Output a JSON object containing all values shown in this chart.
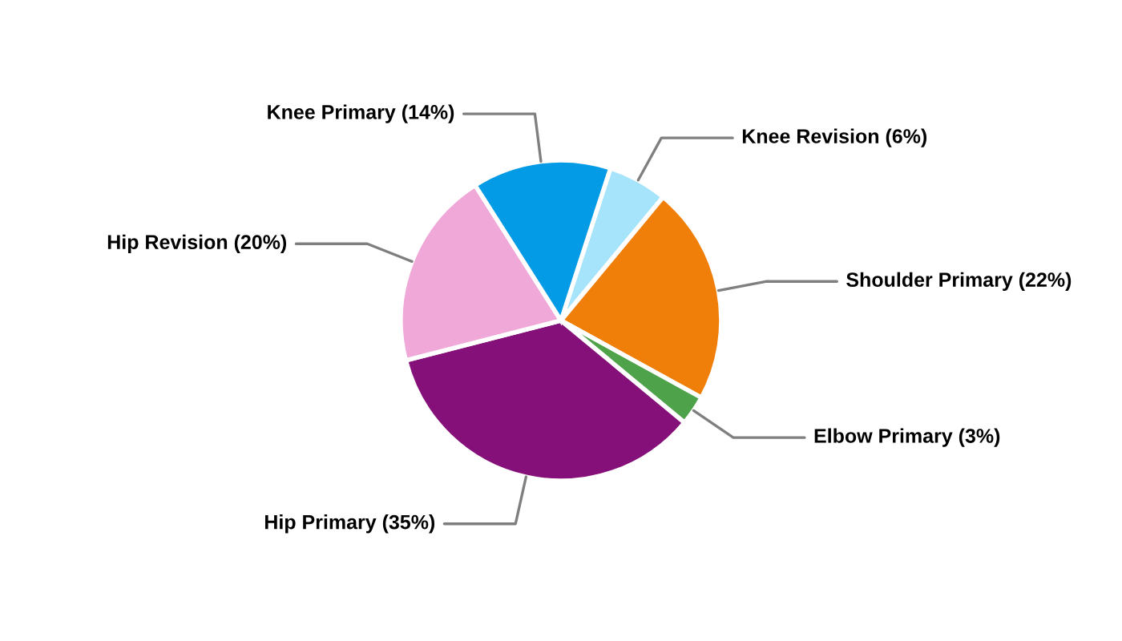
{
  "chart_data": {
    "type": "pie",
    "categories": [
      "Knee Revision (6%)",
      "Shoulder Primary (22%)",
      "Elbow Primary (3%)",
      "Hip Primary (35%)",
      "Hip Revision (20%)",
      "Knee Primary (14%)"
    ],
    "values": [
      6,
      22,
      3,
      35,
      20,
      14
    ],
    "colors": [
      "#a6e4fb",
      "#f07f09",
      "#4ea24a",
      "#861079",
      "#f0a8d8",
      "#039be5"
    ],
    "legend": false
  }
}
